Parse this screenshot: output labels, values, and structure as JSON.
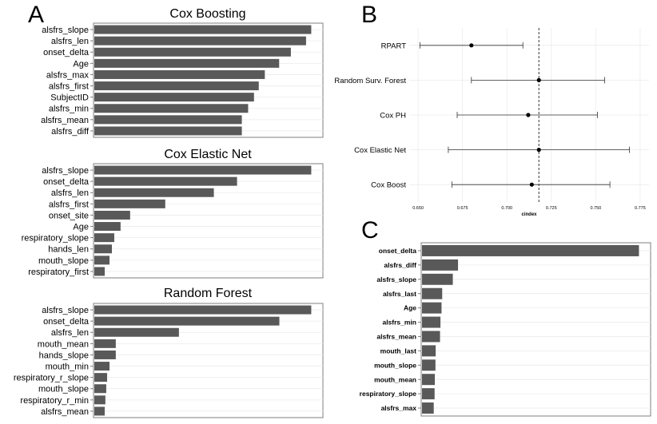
{
  "panel_labels": {
    "a": "A",
    "b": "B",
    "c": "C"
  },
  "chart_data": [
    {
      "id": "cox_boosting",
      "panel": "A",
      "type": "bar",
      "orientation": "horizontal",
      "title": "Cox Boosting",
      "categories": [
        "alsfrs_slope",
        "alsfrs_len",
        "onset_delta",
        "Age",
        "alsfrs_max",
        "alsfrs_first",
        "SubjectID",
        "alsfrs_min",
        "alsfrs_mean",
        "alsfrs_diff"
      ],
      "values": [
        1.0,
        0.976,
        0.906,
        0.852,
        0.786,
        0.758,
        0.736,
        0.709,
        0.68,
        0.68
      ],
      "xlim": [
        0,
        1.05
      ],
      "grid": true,
      "x_ticks_shown": false
    },
    {
      "id": "cox_elastic_net",
      "panel": "A",
      "type": "bar",
      "orientation": "horizontal",
      "title": "Cox Elastic Net",
      "categories": [
        "alsfrs_slope",
        "onset_delta",
        "alsfrs_len",
        "alsfrs_first",
        "onset_site",
        "Age",
        "respiratory_slope",
        "hands_len",
        "mouth_slope",
        "respiratory_first"
      ],
      "values": [
        1.0,
        0.658,
        0.551,
        0.327,
        0.165,
        0.121,
        0.092,
        0.081,
        0.07,
        0.048
      ],
      "xlim": [
        0,
        1.05
      ],
      "grid": true,
      "x_ticks_shown": false
    },
    {
      "id": "random_forest",
      "panel": "A",
      "type": "bar",
      "orientation": "horizontal",
      "title": "Random Forest",
      "categories": [
        "alsfrs_slope",
        "onset_delta",
        "alsfrs_len",
        "mouth_mean",
        "hands_slope",
        "mouth_min",
        "respiratory_r_slope",
        "mouth_slope",
        "respiratory_r_min",
        "alsfrs_mean"
      ],
      "values": [
        1.0,
        0.853,
        0.39,
        0.099,
        0.099,
        0.07,
        0.059,
        0.055,
        0.051,
        0.048
      ],
      "xlim": [
        0,
        1.05
      ],
      "grid": true,
      "x_ticks_shown": false
    },
    {
      "id": "cindex",
      "panel": "B",
      "type": "scatter",
      "subtype": "point-interval",
      "xlabel": "cindex",
      "categories": [
        "RPART",
        "Random Surv. Forest",
        "Cox PH",
        "Cox Elastic Net",
        "Cox Boost"
      ],
      "points": [
        {
          "label": "RPART",
          "x": 0.68,
          "low": 0.651,
          "high": 0.709
        },
        {
          "label": "Random Surv. Forest",
          "x": 0.718,
          "low": 0.68,
          "high": 0.755
        },
        {
          "label": "Cox PH",
          "x": 0.712,
          "low": 0.672,
          "high": 0.751
        },
        {
          "label": "Cox Elastic Net",
          "x": 0.718,
          "low": 0.667,
          "high": 0.769
        },
        {
          "label": "Cox Boost",
          "x": 0.714,
          "low": 0.669,
          "high": 0.758
        }
      ],
      "reference_line": 0.718,
      "x_ticks": [
        "0.650",
        "0.675",
        "0.700",
        "0.725",
        "0.750",
        "0.775"
      ],
      "xlim": [
        0.645,
        0.78
      ],
      "grid": true
    },
    {
      "id": "panel_c",
      "panel": "C",
      "type": "bar",
      "orientation": "horizontal",
      "title": "",
      "categories": [
        "onset_delta",
        "alsfrs_diff",
        "alsfrs_slope",
        "alsfrs_last",
        "Age",
        "alsfrs_min",
        "alsfrs_mean",
        "mouth_last",
        "mouth_slope",
        "mouth_mean",
        "respiratory_slope",
        "alsfrs_max"
      ],
      "values": [
        1.0,
        0.166,
        0.142,
        0.093,
        0.09,
        0.085,
        0.083,
        0.063,
        0.062,
        0.059,
        0.058,
        0.054
      ],
      "xlim": [
        0,
        1.05
      ],
      "grid": true,
      "x_ticks_shown": false
    }
  ]
}
